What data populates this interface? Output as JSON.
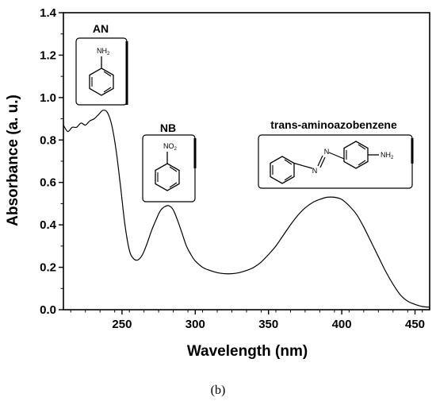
{
  "chart_data": {
    "type": "line",
    "title": "",
    "xlabel": "Wavelength (nm)",
    "ylabel": "Absorbance (a. u.)",
    "xlim": [
      210,
      460
    ],
    "ylim": [
      0,
      1.4
    ],
    "xticks": [
      250,
      300,
      350,
      400,
      450
    ],
    "yticks": [
      0.0,
      0.2,
      0.4,
      0.6,
      0.8,
      1.0,
      1.2,
      1.4
    ],
    "grid": false,
    "series": [
      {
        "color": "#000000",
        "x": [
          210,
          213,
          216,
          219,
          222,
          225,
          228,
          231,
          234,
          237,
          240,
          243,
          246,
          249,
          252,
          255,
          258,
          261,
          264,
          267,
          270,
          273,
          276,
          279,
          282,
          285,
          288,
          291,
          294,
          297,
          300,
          305,
          310,
          315,
          320,
          325,
          330,
          335,
          340,
          345,
          350,
          355,
          360,
          365,
          370,
          375,
          380,
          385,
          390,
          395,
          400,
          405,
          410,
          415,
          420,
          425,
          430,
          435,
          440,
          445,
          450,
          455,
          460
        ],
        "y": [
          0.87,
          0.84,
          0.86,
          0.86,
          0.88,
          0.87,
          0.89,
          0.9,
          0.92,
          0.94,
          0.93,
          0.87,
          0.75,
          0.58,
          0.4,
          0.28,
          0.24,
          0.235,
          0.26,
          0.31,
          0.37,
          0.42,
          0.465,
          0.485,
          0.49,
          0.47,
          0.42,
          0.36,
          0.3,
          0.26,
          0.23,
          0.2,
          0.185,
          0.175,
          0.17,
          0.17,
          0.175,
          0.185,
          0.2,
          0.225,
          0.26,
          0.3,
          0.35,
          0.4,
          0.445,
          0.48,
          0.505,
          0.52,
          0.53,
          0.53,
          0.52,
          0.49,
          0.45,
          0.39,
          0.32,
          0.25,
          0.18,
          0.12,
          0.07,
          0.04,
          0.025,
          0.015,
          0.012
        ]
      }
    ],
    "annotations": [
      {
        "label": "AN",
        "substituent": "NH",
        "substituent_sub": "2"
      },
      {
        "label": "NB",
        "substituent": "NO",
        "substituent_sub": "2"
      },
      {
        "label": "trans-aminoazobenzene",
        "azo_atoms": "N",
        "substituent": "NH",
        "substituent_sub": "2"
      }
    ]
  },
  "panel_label": "(b)"
}
